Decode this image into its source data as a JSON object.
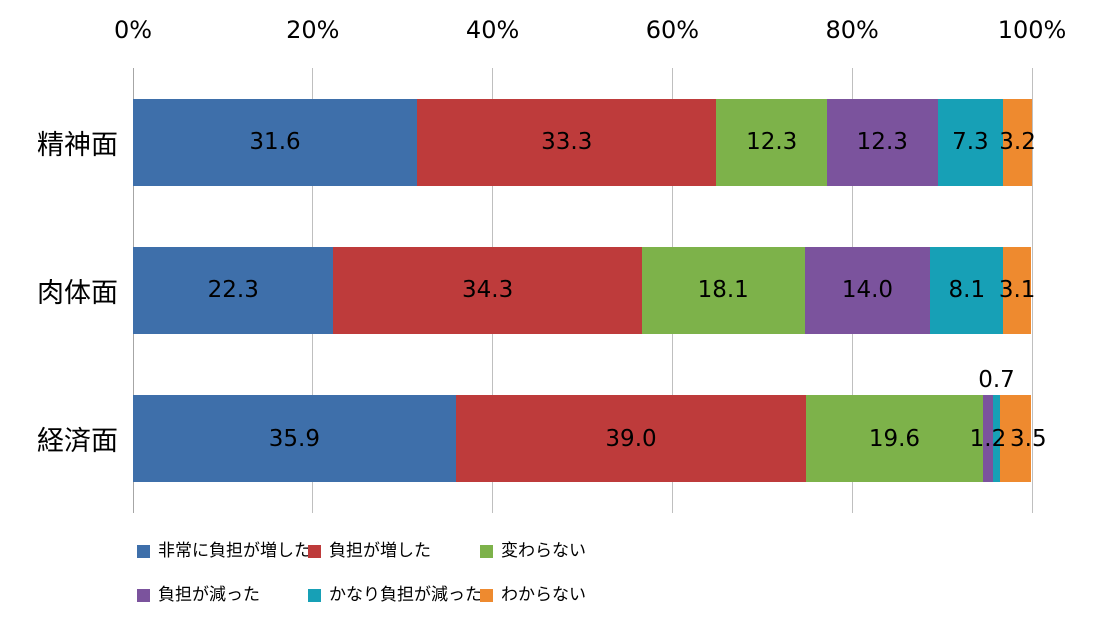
{
  "chart_data": {
    "type": "bar",
    "orientation": "horizontal",
    "stacked": true,
    "title": "",
    "xlabel": "",
    "ylabel": "",
    "unit": "%",
    "axis_range": [
      0,
      100
    ],
    "grid": true,
    "legend_position": "bottom",
    "x_axis": {
      "position": "top",
      "ticks": [
        "0%",
        "20%",
        "40%",
        "60%",
        "80%",
        "100%"
      ]
    },
    "categories": [
      "精神面",
      "肉体面",
      "経済面"
    ],
    "series": [
      {
        "name": "非常に負担が増した",
        "color": "#3E6FAA",
        "values": [
          31.6,
          22.3,
          35.9
        ],
        "labels": [
          "31.6",
          "22.3",
          "35.9"
        ]
      },
      {
        "name": "負担が増した",
        "color": "#BE3B3B",
        "values": [
          33.3,
          34.3,
          39.0
        ],
        "labels": [
          "33.3",
          "34.3",
          "39.0"
        ]
      },
      {
        "name": "変わらない",
        "color": "#7DB24A",
        "values": [
          12.3,
          18.1,
          19.6
        ],
        "labels": [
          "12.3",
          "18.1",
          "19.6"
        ]
      },
      {
        "name": "負担が減った",
        "color": "#7B539D",
        "values": [
          12.3,
          14.0,
          1.2
        ],
        "labels": [
          "12.3",
          "14.0",
          "1.2"
        ]
      },
      {
        "name": "かなり負担が減った",
        "color": "#17A0B6",
        "values": [
          7.3,
          8.1,
          0.7
        ],
        "labels": [
          "7.3",
          "8.1",
          "0.7"
        ]
      },
      {
        "name": "わからない",
        "color": "#EE8A2F",
        "values": [
          3.2,
          3.1,
          3.5
        ],
        "labels": [
          "3.2",
          "3.1",
          "3.5"
        ]
      }
    ],
    "label_overrides": [
      {
        "series": 4,
        "category": 2,
        "position": "above"
      },
      {
        "series": 5,
        "category": 2,
        "dx": 13
      }
    ]
  },
  "colors": {
    "background": "#FFFFFF",
    "gridline": "#BFBFBF",
    "axis_line": "#A6A6A6",
    "text": "#000000"
  }
}
